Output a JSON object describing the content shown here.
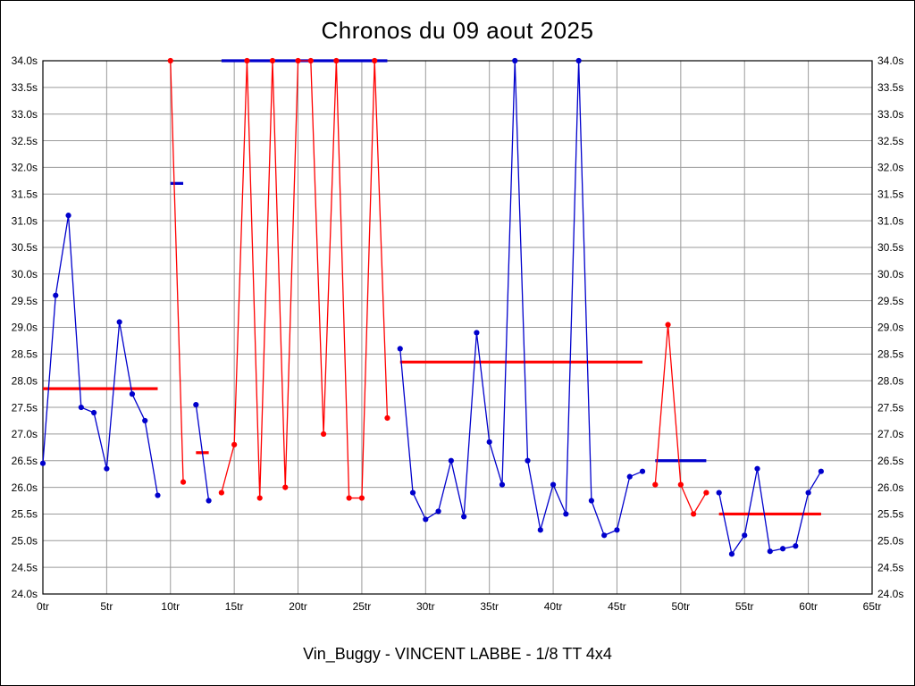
{
  "chart_data": {
    "type": "line",
    "title": "Chronos du 09 aout 2025",
    "footer": "Vin_Buggy - VINCENT LABBE - 1/8 TT 4x4",
    "xlim": [
      0,
      65
    ],
    "ylim": [
      24.0,
      34.0
    ],
    "x_tick_labels": [
      "0tr",
      "5tr",
      "10tr",
      "15tr",
      "20tr",
      "25tr",
      "30tr",
      "35tr",
      "40tr",
      "45tr",
      "50tr",
      "55tr",
      "60tr",
      "65tr"
    ],
    "y_tick_labels": [
      "34.0s",
      "33.5s",
      "33.0s",
      "32.5s",
      "32.0s",
      "31.5s",
      "31.0s",
      "30.5s",
      "30.0s",
      "29.5s",
      "29.0s",
      "28.5s",
      "28.0s",
      "27.5s",
      "27.0s",
      "26.5s",
      "26.0s",
      "25.5s",
      "25.0s",
      "24.5s",
      "24.0s"
    ],
    "legend": "none",
    "grid": "on",
    "colors": {
      "blue": "#0000cc",
      "red": "#ff0000",
      "grid": "#9a9a9a",
      "axis": "#000000"
    },
    "runs": [
      {
        "name": "run-1",
        "color": "blue",
        "start_lap": 0,
        "lap_times": [
          26.45,
          29.6,
          31.1,
          27.5,
          27.4,
          26.35,
          29.1,
          27.75,
          27.25,
          25.85
        ]
      },
      {
        "name": "run-2",
        "color": "red",
        "start_lap": 10,
        "lap_times": [
          34.0,
          26.1
        ]
      },
      {
        "name": "run-3",
        "color": "blue",
        "start_lap": 12,
        "lap_times": [
          27.55,
          25.75
        ]
      },
      {
        "name": "run-4",
        "color": "red",
        "start_lap": 14,
        "lap_times": [
          25.9,
          26.8,
          34.0,
          25.8,
          34.0,
          26.0,
          34.0,
          34.0,
          27.0,
          34.0,
          25.8,
          25.8,
          34.0,
          27.3
        ]
      },
      {
        "name": "run-5",
        "color": "blue",
        "start_lap": 28,
        "lap_times": [
          28.6,
          25.9,
          25.4,
          25.55,
          26.5,
          25.45,
          28.9,
          26.85,
          26.05,
          34.0,
          26.5,
          25.2,
          26.05,
          25.5,
          34.0,
          25.75,
          25.1,
          25.2,
          26.2,
          26.3
        ]
      },
      {
        "name": "run-6",
        "color": "red",
        "start_lap": 48,
        "lap_times": [
          26.05,
          29.05,
          26.05,
          25.5,
          25.9
        ]
      },
      {
        "name": "run-7",
        "color": "blue",
        "start_lap": 53,
        "lap_times": [
          25.9,
          24.75,
          25.1,
          26.35,
          24.8,
          24.85,
          24.9,
          25.9,
          26.3
        ]
      }
    ],
    "average_lines": [
      {
        "color": "red",
        "from_lap": 0,
        "to_lap": 9,
        "value": 27.85
      },
      {
        "color": "blue",
        "from_lap": 10,
        "to_lap": 11,
        "value": 31.7
      },
      {
        "color": "red",
        "from_lap": 12,
        "to_lap": 13,
        "value": 26.65
      },
      {
        "color": "blue",
        "from_lap": 14,
        "to_lap": 27,
        "value": 34.0
      },
      {
        "color": "red",
        "from_lap": 28,
        "to_lap": 47,
        "value": 28.35
      },
      {
        "color": "blue",
        "from_lap": 48,
        "to_lap": 52,
        "value": 26.5
      },
      {
        "color": "red",
        "from_lap": 53,
        "to_lap": 61,
        "value": 25.5
      }
    ]
  }
}
